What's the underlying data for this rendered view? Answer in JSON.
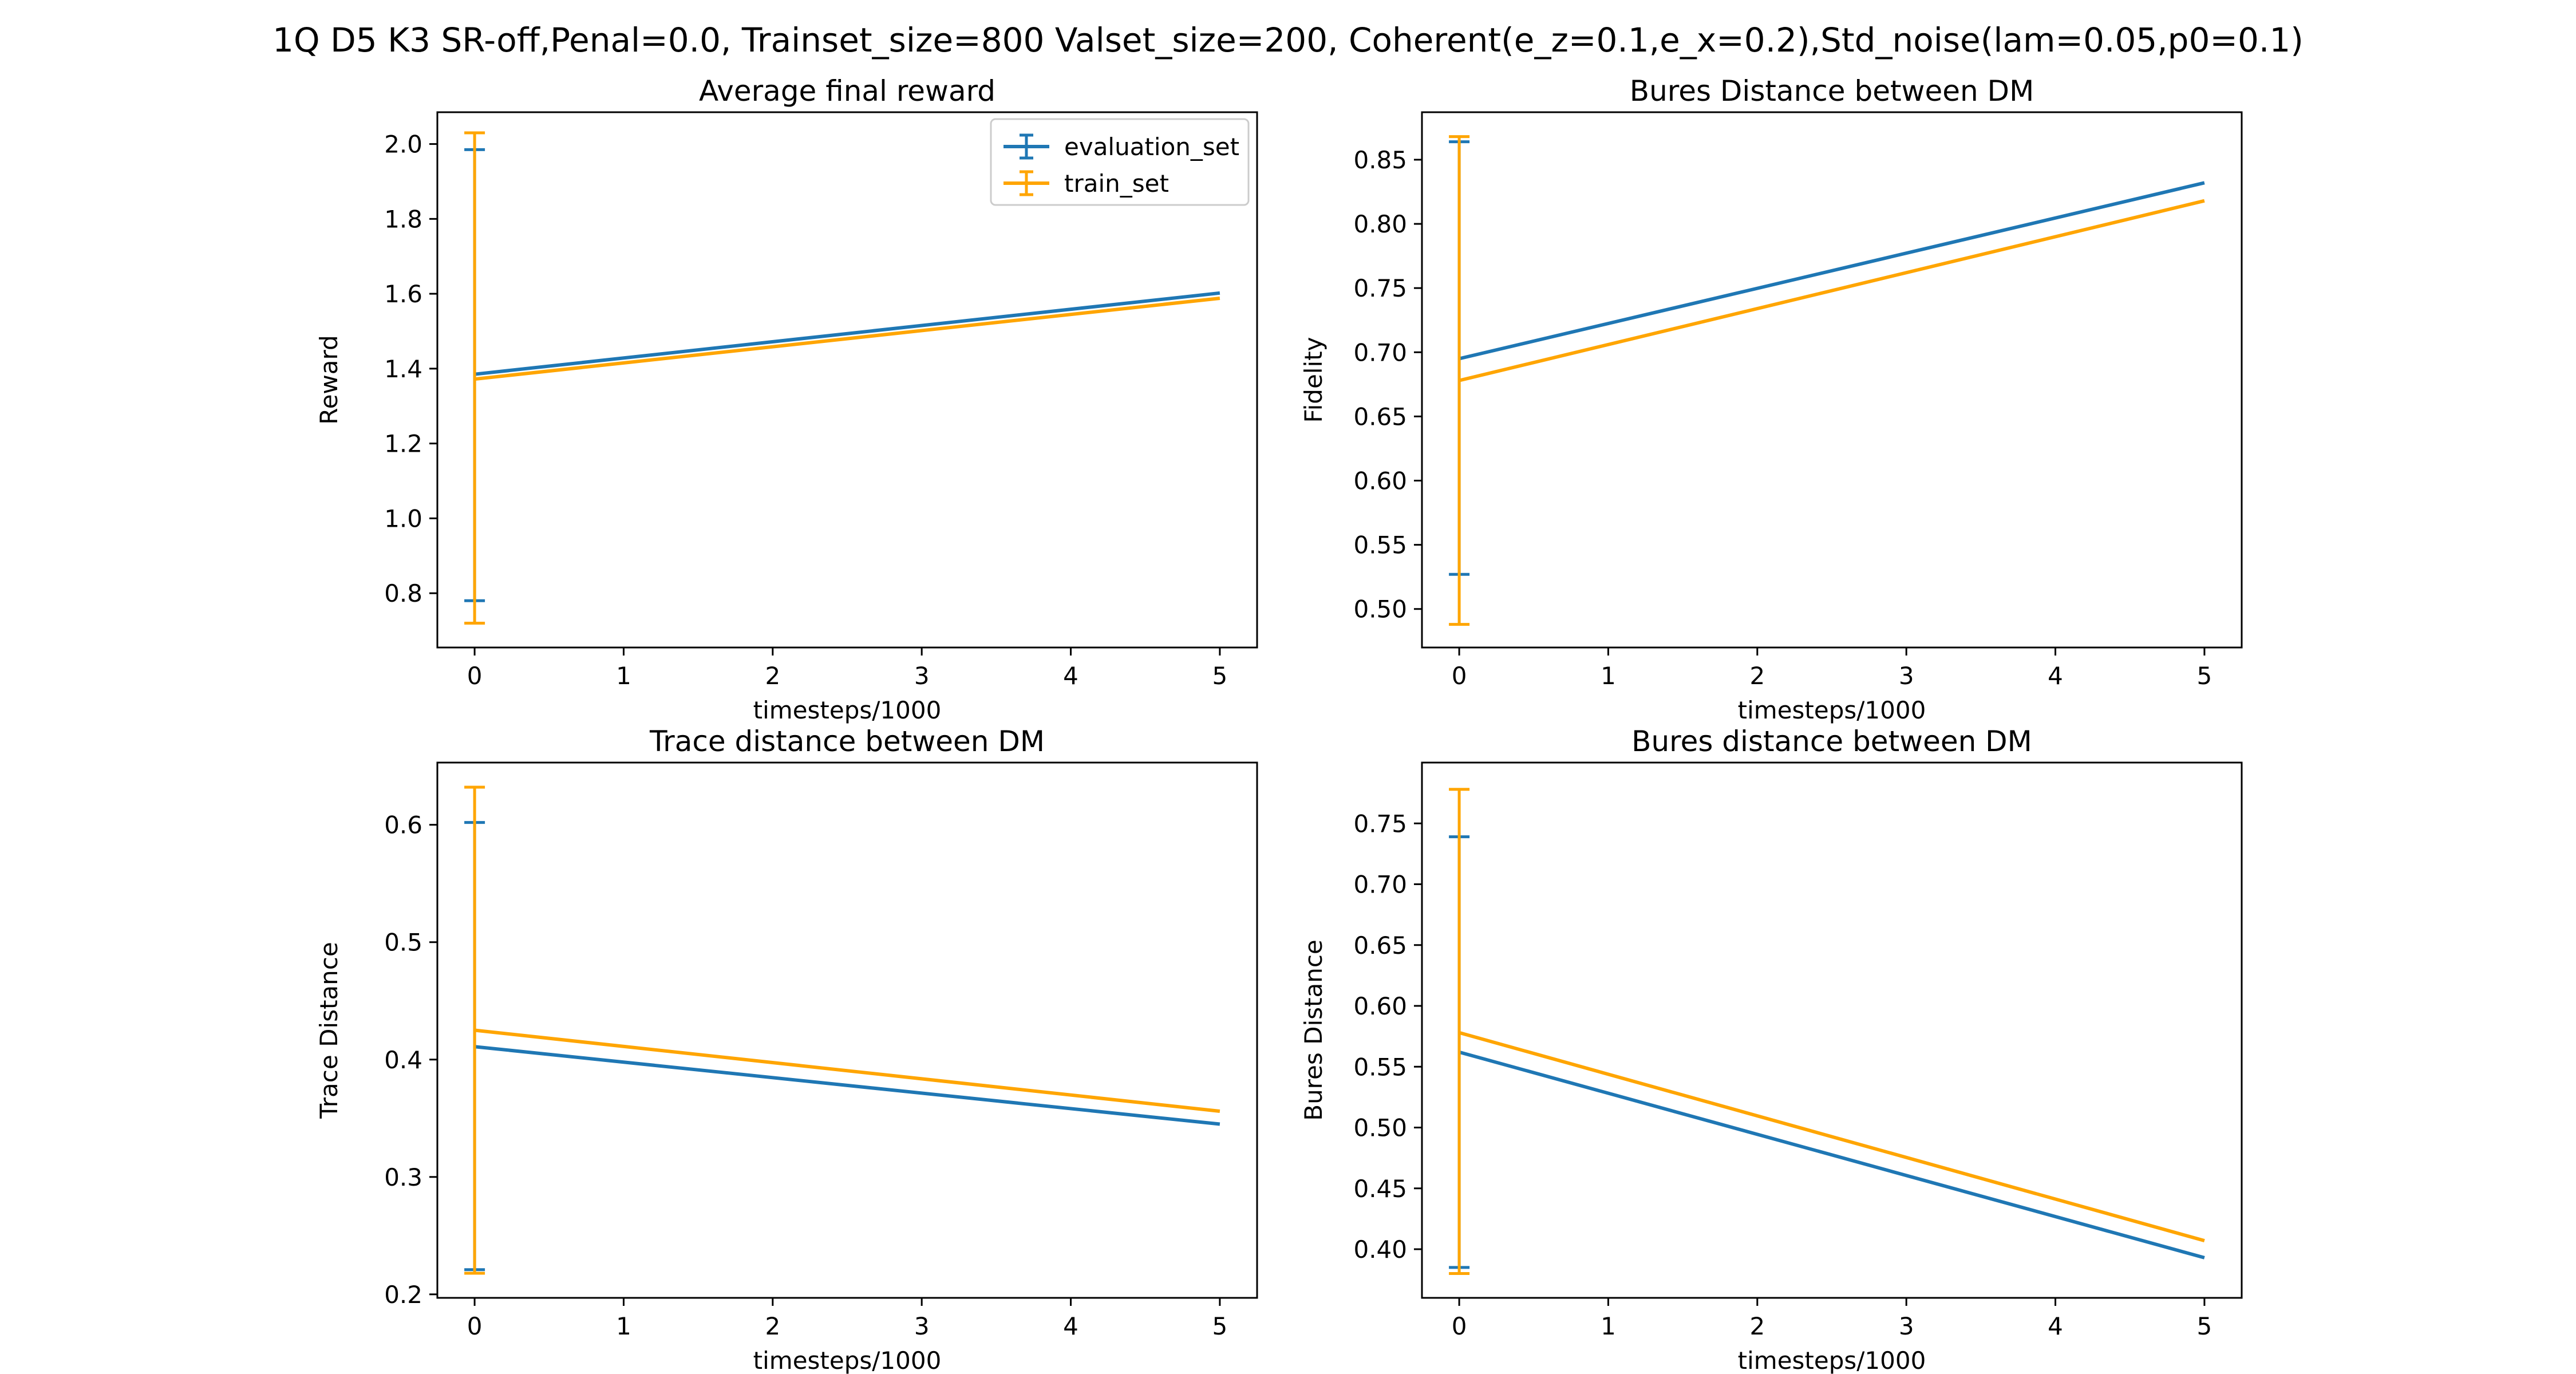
{
  "figure": {
    "suptitle": "1Q D5 K3 SR-off,Penal=0.0, Trainset_size=800 Valset_size=200, Coherent(e_z=0.1,e_x=0.2),Std_noise(lam=0.05,p0=0.1)"
  },
  "colors": {
    "evaluation_set": "#1f77b4",
    "train_set": "#ffa500"
  },
  "chart_data": [
    {
      "type": "line",
      "title": "Average final reward",
      "xlabel": "timesteps/1000",
      "ylabel": "Reward",
      "xlim": [
        -0.25,
        5.25
      ],
      "ylim": [
        0.655,
        2.085
      ],
      "xticks": [
        0,
        1,
        2,
        3,
        4,
        5
      ],
      "yticks": [
        0.8,
        1.0,
        1.2,
        1.4,
        1.6,
        1.8,
        2.0
      ],
      "ytick_labels": [
        "0.8",
        "1.0",
        "1.2",
        "1.4",
        "1.6",
        "1.8",
        "2.0"
      ],
      "legend": "upper right",
      "series": [
        {
          "name": "evaluation_set",
          "x": [
            0,
            5
          ],
          "y": [
            1.385,
            1.602
          ],
          "err_x": 0,
          "err_low": 0.78,
          "err_high": 1.985
        },
        {
          "name": "train_set",
          "x": [
            0,
            5
          ],
          "y": [
            1.372,
            1.588
          ],
          "err_x": 0,
          "err_low": 0.72,
          "err_high": 2.03
        }
      ]
    },
    {
      "type": "line",
      "title": "Bures Distance between DM",
      "xlabel": "timesteps/1000",
      "ylabel": "Fidelity",
      "xlim": [
        -0.25,
        5.25
      ],
      "ylim": [
        0.47,
        0.887
      ],
      "xticks": [
        0,
        1,
        2,
        3,
        4,
        5
      ],
      "yticks": [
        0.5,
        0.55,
        0.6,
        0.65,
        0.7,
        0.75,
        0.8,
        0.85
      ],
      "ytick_labels": [
        "0.50",
        "0.55",
        "0.60",
        "0.65",
        "0.70",
        "0.75",
        "0.80",
        "0.85"
      ],
      "legend": "none",
      "series": [
        {
          "name": "evaluation_set",
          "x": [
            0,
            5
          ],
          "y": [
            0.695,
            0.832
          ],
          "err_x": 0,
          "err_low": 0.527,
          "err_high": 0.864
        },
        {
          "name": "train_set",
          "x": [
            0,
            5
          ],
          "y": [
            0.678,
            0.818
          ],
          "err_x": 0,
          "err_low": 0.488,
          "err_high": 0.868
        }
      ]
    },
    {
      "type": "line",
      "title": "Trace distance between DM",
      "xlabel": "timesteps/1000",
      "ylabel": "Trace Distance",
      "xlim": [
        -0.25,
        5.25
      ],
      "ylim": [
        0.197,
        0.653
      ],
      "xticks": [
        0,
        1,
        2,
        3,
        4,
        5
      ],
      "yticks": [
        0.2,
        0.3,
        0.4,
        0.5,
        0.6
      ],
      "ytick_labels": [
        "0.2",
        "0.3",
        "0.4",
        "0.5",
        "0.6"
      ],
      "legend": "none",
      "series": [
        {
          "name": "evaluation_set",
          "x": [
            0,
            5
          ],
          "y": [
            0.411,
            0.345
          ],
          "err_x": 0,
          "err_low": 0.221,
          "err_high": 0.602
        },
        {
          "name": "train_set",
          "x": [
            0,
            5
          ],
          "y": [
            0.425,
            0.356
          ],
          "err_x": 0,
          "err_low": 0.218,
          "err_high": 0.632
        }
      ]
    },
    {
      "type": "line",
      "title": "Bures distance between DM",
      "xlabel": "timesteps/1000",
      "ylabel": "Bures Distance",
      "xlim": [
        -0.25,
        5.25
      ],
      "ylim": [
        0.36,
        0.8
      ],
      "xticks": [
        0,
        1,
        2,
        3,
        4,
        5
      ],
      "yticks": [
        0.4,
        0.45,
        0.5,
        0.55,
        0.6,
        0.65,
        0.7,
        0.75
      ],
      "ytick_labels": [
        "0.40",
        "0.45",
        "0.50",
        "0.55",
        "0.60",
        "0.65",
        "0.70",
        "0.75"
      ],
      "legend": "none",
      "series": [
        {
          "name": "evaluation_set",
          "x": [
            0,
            5
          ],
          "y": [
            0.562,
            0.393
          ],
          "err_x": 0,
          "err_low": 0.385,
          "err_high": 0.739
        },
        {
          "name": "train_set",
          "x": [
            0,
            5
          ],
          "y": [
            0.578,
            0.407
          ],
          "err_x": 0,
          "err_low": 0.38,
          "err_high": 0.778
        }
      ]
    }
  ]
}
